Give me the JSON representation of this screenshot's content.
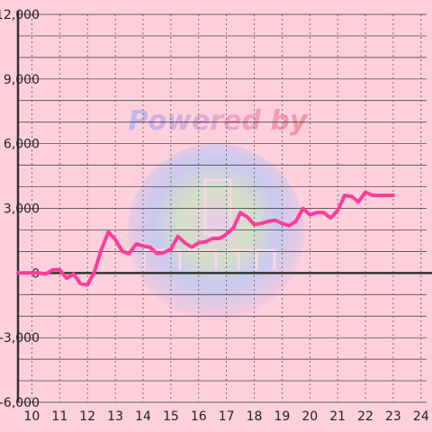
{
  "chart_data": {
    "type": "line",
    "title": "",
    "xlabel": "",
    "ylabel": "",
    "xlim": [
      9.5,
      24.2
    ],
    "ylim": [
      -6000,
      12000
    ],
    "x_ticks": [
      "10",
      "11",
      "12",
      "13",
      "14",
      "15",
      "16",
      "17",
      "18",
      "19",
      "20",
      "21",
      "22",
      "23",
      "24"
    ],
    "y_ticks": [
      "12,000",
      "9,000",
      "6,000",
      "3,000",
      "0",
      "-3,000",
      "-6,000"
    ],
    "y_tick_values": [
      12000,
      9000,
      6000,
      3000,
      0,
      -3000,
      -6000
    ],
    "grid": true,
    "series": [
      {
        "color": "#ff3d9a",
        "x": [
          9.5,
          10.0,
          10.25,
          10.5,
          10.75,
          11.0,
          11.25,
          11.5,
          11.75,
          12.0,
          12.25,
          12.5,
          12.75,
          13.0,
          13.25,
          13.5,
          13.75,
          14.0,
          14.25,
          14.5,
          14.75,
          15.0,
          15.25,
          15.5,
          15.75,
          16.0,
          16.25,
          16.5,
          16.75,
          17.0,
          17.25,
          17.5,
          17.75,
          18.0,
          18.25,
          18.5,
          18.75,
          19.0,
          19.25,
          19.5,
          19.75,
          20.0,
          20.25,
          20.5,
          20.75,
          21.0,
          21.25,
          21.5,
          21.75,
          22.0,
          22.25,
          22.5,
          22.75,
          23.0
        ],
        "y": [
          0,
          0,
          0,
          -50,
          150,
          150,
          -250,
          -50,
          -500,
          -550,
          50,
          1100,
          1900,
          1550,
          1000,
          900,
          1350,
          1250,
          1200,
          900,
          950,
          1100,
          1700,
          1400,
          1200,
          1400,
          1450,
          1600,
          1600,
          1800,
          2100,
          2800,
          2600,
          2250,
          2300,
          2400,
          2450,
          2300,
          2200,
          2400,
          3000,
          2700,
          2800,
          2800,
          2550,
          2900,
          3600,
          3550,
          3300,
          3750,
          3600,
          3600,
          3600,
          3600
        ]
      }
    ],
    "watermark": "Powered by"
  }
}
